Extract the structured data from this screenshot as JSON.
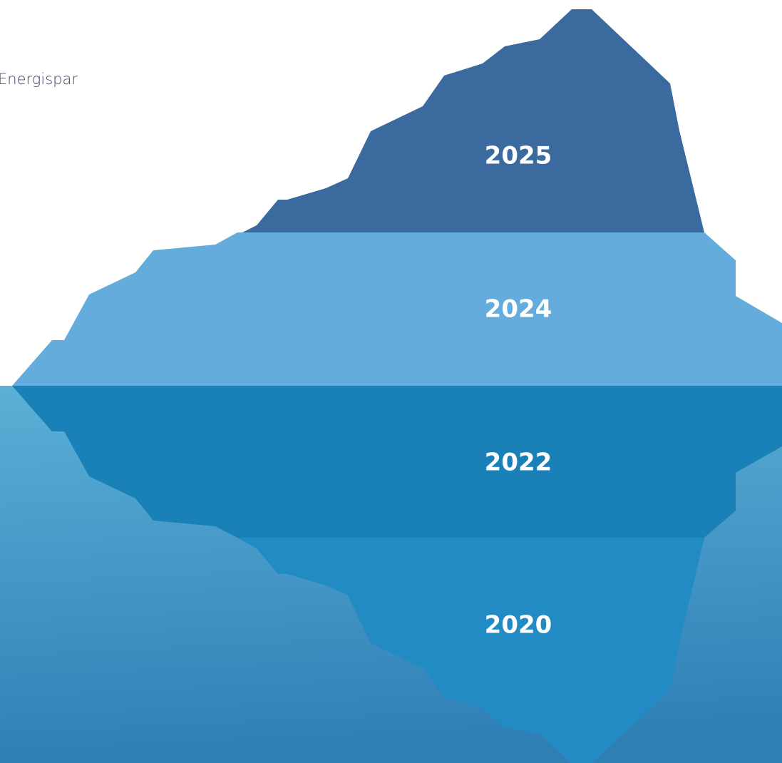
{
  "title": "Energispar",
  "layers": [
    {
      "label": "2025"
    },
    {
      "label": "2024"
    },
    {
      "label": "2022"
    },
    {
      "label": "2020"
    }
  ]
}
